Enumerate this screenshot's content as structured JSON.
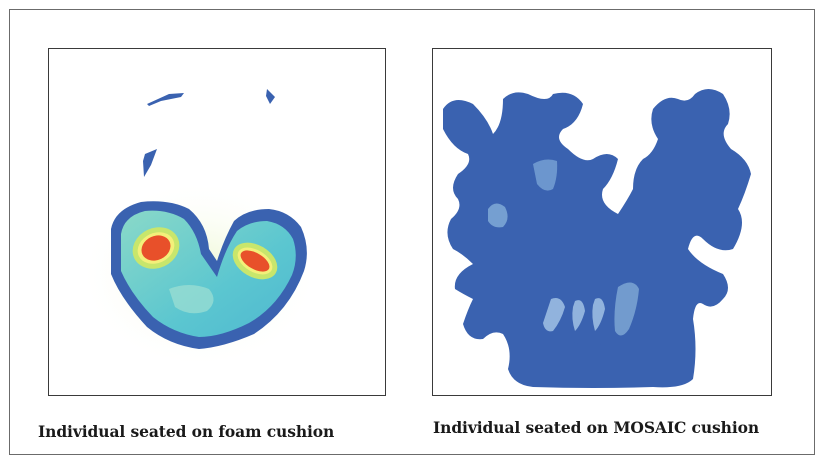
{
  "captions": {
    "foam": "Individual seated on foam cushion",
    "mosaic": "Individual seated on MOSAIC cushion"
  },
  "colors": {
    "low_pressure_blue": "#3a62b0",
    "mid_cyan": "#6ccdd2",
    "mid_yellow_green": "#c8e66c",
    "high_red": "#e8502a",
    "border": "#3a3a3a"
  }
}
